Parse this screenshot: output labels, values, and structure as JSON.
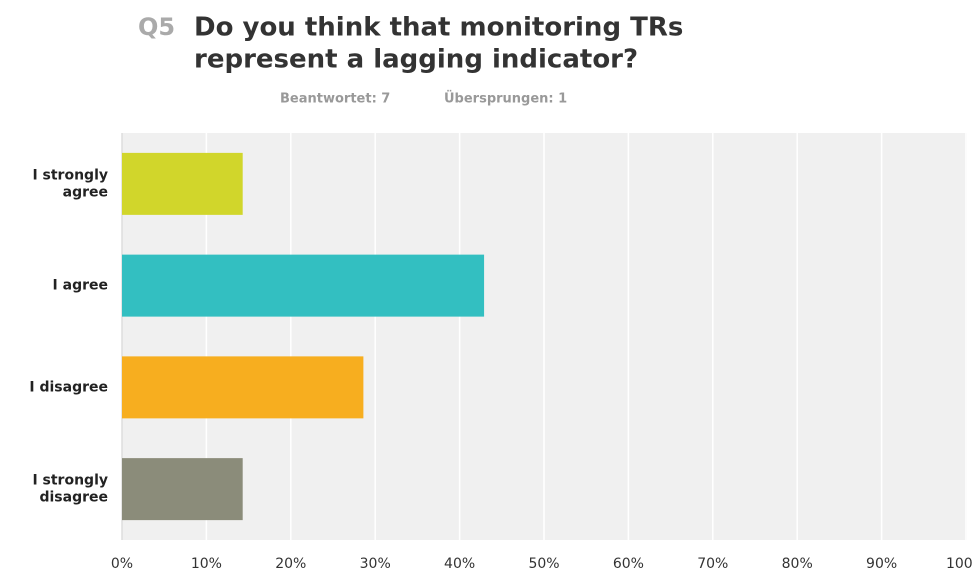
{
  "chart_data": {
    "type": "barh",
    "question_number": "Q5",
    "title": [
      "Do you think that monitoring TRs",
      "represent a lagging indicator?"
    ],
    "subtitle": [
      "Beantwortet: 7",
      "Übersprungen: 1"
    ],
    "categories": [
      "I strongly agree",
      "I agree",
      "I disagree",
      "I strongly disagree"
    ],
    "values": [
      14.3,
      42.9,
      28.6,
      14.3
    ],
    "colors": [
      "#d1d62b",
      "#33bfc1",
      "#f7ae1f",
      "#8b8c7a"
    ],
    "xlim": [
      0,
      100
    ],
    "xticks": [
      {
        "value": 0,
        "label": "0%"
      },
      {
        "value": 10,
        "label": "10%"
      },
      {
        "value": 20,
        "label": "20%"
      },
      {
        "value": 30,
        "label": "30%"
      },
      {
        "value": 40,
        "label": "40%"
      },
      {
        "value": 50,
        "label": "50%"
      },
      {
        "value": 60,
        "label": "60%"
      },
      {
        "value": 70,
        "label": "70%"
      },
      {
        "value": 80,
        "label": "80%"
      },
      {
        "value": 90,
        "label": "90%"
      },
      {
        "value": 100,
        "label": "100%"
      }
    ],
    "grid": true
  }
}
